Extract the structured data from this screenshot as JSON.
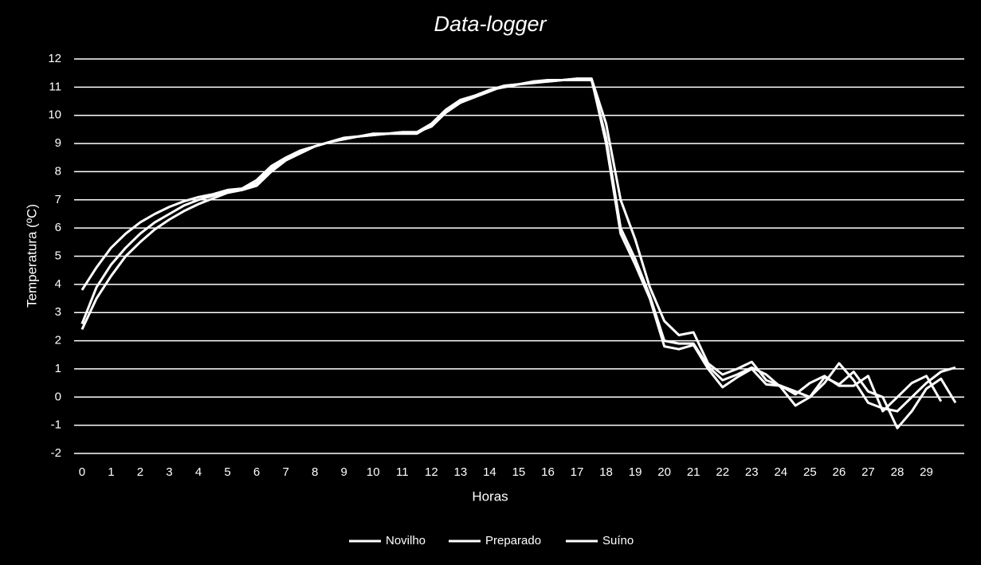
{
  "chart_data": {
    "type": "line",
    "title": "Data-logger",
    "x_label": "Horas",
    "y_label": "Temperatura (ºC)",
    "x": [
      0,
      0.5,
      1,
      1.5,
      2,
      2.5,
      3,
      3.5,
      4,
      4.5,
      5,
      5.5,
      6,
      6.5,
      7,
      7.5,
      8,
      8.5,
      9,
      9.5,
      10,
      10.5,
      11,
      11.5,
      12,
      12.5,
      13,
      13.5,
      14,
      14.5,
      15,
      15.5,
      16,
      16.5,
      17,
      17.5,
      18,
      18.5,
      19,
      19.5,
      20,
      20.5,
      21,
      21.5,
      22,
      22.5,
      23,
      23.5,
      24,
      24.5,
      25,
      25.5,
      26,
      26.5,
      27,
      27.5,
      28,
      28.5,
      29,
      29.5,
      30
    ],
    "series": [
      {
        "name": "Novilho",
        "color": "#ffffff",
        "values": [
          3.8,
          4.6,
          5.3,
          5.8,
          6.2,
          6.5,
          6.75,
          6.95,
          7.1,
          7.2,
          7.35,
          7.4,
          7.7,
          8.2,
          8.5,
          8.75,
          8.9,
          9.05,
          9.2,
          9.25,
          9.35,
          9.35,
          9.4,
          9.4,
          9.7,
          10.2,
          10.55,
          10.7,
          10.9,
          11.05,
          11.1,
          11.2,
          11.25,
          11.25,
          11.3,
          11.3,
          9.7,
          7.0,
          5.6,
          3.9,
          2.7,
          2.2,
          2.3,
          1.2,
          0.8,
          1.0,
          1.25,
          0.6,
          0.4,
          0.2,
          0.0,
          0.5,
          1.2,
          0.6,
          -0.2,
          -0.4,
          -0.5,
          0.0,
          0.5,
          0.9,
          1.05
        ]
      },
      {
        "name": "Preparado",
        "color": "#ffffff",
        "values": [
          2.6,
          3.9,
          4.7,
          5.3,
          5.8,
          6.2,
          6.5,
          6.8,
          7.0,
          7.15,
          7.3,
          7.35,
          7.6,
          8.1,
          8.45,
          8.7,
          8.9,
          9.05,
          9.15,
          9.25,
          9.3,
          9.35,
          9.35,
          9.35,
          9.65,
          10.15,
          10.5,
          10.7,
          10.9,
          11.0,
          11.1,
          11.2,
          11.2,
          11.25,
          11.25,
          11.25,
          9.2,
          6.0,
          4.9,
          3.6,
          2.0,
          1.9,
          1.9,
          1.1,
          0.6,
          0.8,
          1.05,
          0.8,
          0.35,
          -0.3,
          0.0,
          0.7,
          0.45,
          0.9,
          0.2,
          0.0,
          -1.1,
          -0.5,
          0.3,
          0.65,
          -0.2
        ]
      },
      {
        "name": "Suíno",
        "color": "#ffffff",
        "values": [
          2.4,
          3.5,
          4.3,
          5.0,
          5.5,
          5.95,
          6.3,
          6.6,
          6.85,
          7.05,
          7.25,
          7.35,
          7.5,
          8.0,
          8.4,
          8.65,
          8.9,
          9.05,
          9.2,
          9.25,
          9.3,
          9.35,
          9.4,
          9.4,
          9.6,
          10.1,
          10.45,
          10.65,
          10.85,
          11.05,
          11.1,
          11.15,
          11.2,
          11.25,
          11.3,
          11.3,
          9.0,
          5.8,
          4.7,
          3.5,
          1.8,
          1.7,
          1.85,
          1.0,
          0.35,
          0.7,
          1.0,
          0.45,
          0.4,
          0.1,
          0.5,
          0.75,
          0.4,
          0.4,
          0.75,
          -0.5,
          0.0,
          0.5,
          0.75,
          -0.15,
          null
        ]
      }
    ],
    "xlim": [
      -0.27,
      30.3
    ],
    "xticks": [
      0,
      1,
      2,
      3,
      4,
      5,
      6,
      7,
      8,
      9,
      10,
      11,
      12,
      13,
      14,
      15,
      16,
      17,
      18,
      19,
      20,
      21,
      22,
      23,
      24,
      25,
      26,
      27,
      28,
      29
    ],
    "ylim": [
      -2,
      12
    ],
    "yticks": [
      -2,
      -1,
      0,
      1,
      2,
      3,
      4,
      5,
      6,
      7,
      8,
      9,
      10,
      11,
      12
    ],
    "grid": true,
    "legend": "bottom"
  }
}
